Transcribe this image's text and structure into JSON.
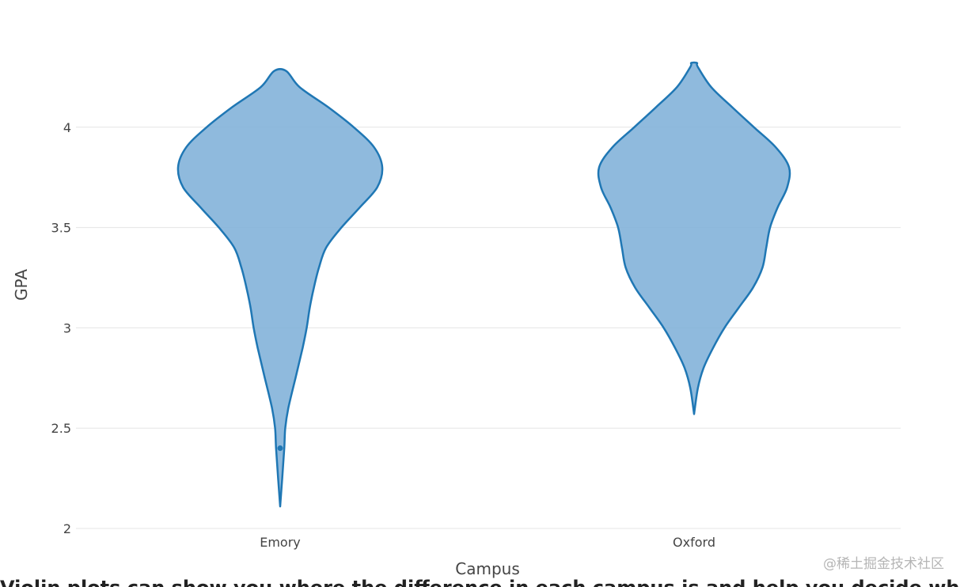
{
  "chart_data": {
    "type": "violin",
    "xlabel": "Campus",
    "ylabel": "GPA",
    "ylim": [
      2,
      4.35
    ],
    "yticks": [
      2,
      2.5,
      3,
      3.5,
      4
    ],
    "ytick_labels": [
      "2",
      "2.5",
      "3",
      "3.5",
      "4"
    ],
    "grid": true,
    "legend": "none",
    "colors": {
      "line": "#1f77b4",
      "fill": "#7fb0d8",
      "grid": "#e5e5e5",
      "text": "#444444"
    },
    "categories": [
      "Emory",
      "Oxford"
    ],
    "violins": [
      {
        "category": "Emory",
        "min": 2.11,
        "max": 4.28,
        "outliers": [
          2.4
        ],
        "density": [
          [
            2.11,
            0.0
          ],
          [
            2.25,
            0.02
          ],
          [
            2.4,
            0.04
          ],
          [
            2.5,
            0.05
          ],
          [
            2.6,
            0.08
          ],
          [
            2.75,
            0.15
          ],
          [
            2.9,
            0.22
          ],
          [
            3.0,
            0.26
          ],
          [
            3.1,
            0.29
          ],
          [
            3.2,
            0.33
          ],
          [
            3.3,
            0.38
          ],
          [
            3.4,
            0.45
          ],
          [
            3.5,
            0.6
          ],
          [
            3.6,
            0.78
          ],
          [
            3.7,
            0.95
          ],
          [
            3.8,
            1.0
          ],
          [
            3.9,
            0.92
          ],
          [
            4.0,
            0.72
          ],
          [
            4.1,
            0.47
          ],
          [
            4.2,
            0.19
          ],
          [
            4.28,
            0.06
          ]
        ]
      },
      {
        "category": "Oxford",
        "min": 2.57,
        "max": 4.32,
        "outliers": [],
        "density": [
          [
            2.57,
            0.0
          ],
          [
            2.7,
            0.04
          ],
          [
            2.8,
            0.1
          ],
          [
            2.9,
            0.2
          ],
          [
            3.0,
            0.32
          ],
          [
            3.1,
            0.47
          ],
          [
            3.2,
            0.62
          ],
          [
            3.3,
            0.72
          ],
          [
            3.4,
            0.76
          ],
          [
            3.5,
            0.8
          ],
          [
            3.6,
            0.88
          ],
          [
            3.7,
            0.98
          ],
          [
            3.8,
            1.0
          ],
          [
            3.9,
            0.86
          ],
          [
            4.0,
            0.63
          ],
          [
            4.1,
            0.4
          ],
          [
            4.2,
            0.18
          ],
          [
            4.3,
            0.04
          ],
          [
            4.32,
            0.03
          ]
        ]
      }
    ]
  },
  "watermark": "@稀土掘金技术社区",
  "cut_text": "Violin plots can show you where the difference in each campus is and help you decide whether the statistically"
}
